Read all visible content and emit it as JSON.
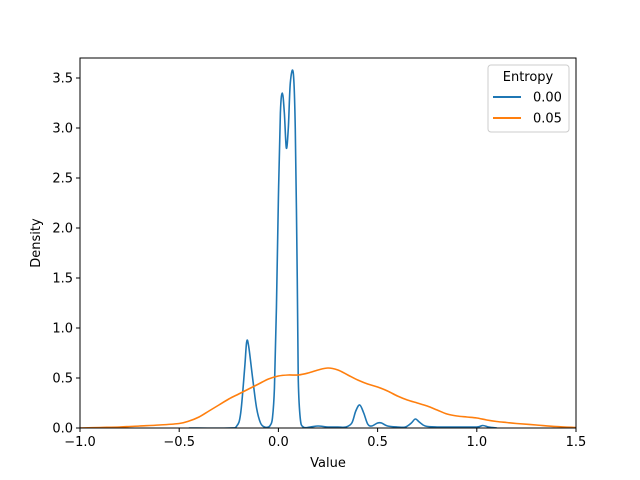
{
  "chart_data": {
    "type": "line",
    "xlabel": "Value",
    "ylabel": "Density",
    "xlim": [
      -1.0,
      1.5
    ],
    "ylim": [
      0.0,
      3.7
    ],
    "x_ticks": [
      -1.0,
      -0.5,
      0.0,
      0.5,
      1.0,
      1.5
    ],
    "x_tick_labels": [
      "−1.0",
      "−0.5",
      "0.0",
      "0.5",
      "1.0",
      "1.5"
    ],
    "y_ticks": [
      0.0,
      0.5,
      1.0,
      1.5,
      2.0,
      2.5,
      3.0,
      3.5
    ],
    "y_tick_labels": [
      "0.0",
      "0.5",
      "1.0",
      "1.5",
      "2.0",
      "2.5",
      "3.0",
      "3.5"
    ],
    "grid": false,
    "legend": {
      "title": "Entropy",
      "placement": "top-right"
    },
    "series": [
      {
        "name": "0.00",
        "color": "#1f77b4",
        "points": [
          [
            -0.45,
            0.0
          ],
          [
            -0.25,
            0.0
          ],
          [
            -0.21,
            0.02
          ],
          [
            -0.19,
            0.15
          ],
          [
            -0.17,
            0.6
          ],
          [
            -0.16,
            0.86
          ],
          [
            -0.15,
            0.82
          ],
          [
            -0.13,
            0.5
          ],
          [
            -0.11,
            0.2
          ],
          [
            -0.09,
            0.05
          ],
          [
            -0.07,
            0.01
          ],
          [
            -0.05,
            0.01
          ],
          [
            -0.04,
            0.03
          ],
          [
            -0.03,
            0.1
          ],
          [
            -0.02,
            0.4
          ],
          [
            -0.01,
            1.2
          ],
          [
            0.0,
            2.3
          ],
          [
            0.01,
            3.15
          ],
          [
            0.02,
            3.35
          ],
          [
            0.03,
            3.15
          ],
          [
            0.04,
            2.8
          ],
          [
            0.05,
            3.0
          ],
          [
            0.06,
            3.45
          ],
          [
            0.075,
            3.55
          ],
          [
            0.085,
            3.0
          ],
          [
            0.095,
            1.5
          ],
          [
            0.1,
            0.5
          ],
          [
            0.11,
            0.1
          ],
          [
            0.125,
            0.01
          ],
          [
            0.16,
            0.01
          ],
          [
            0.2,
            0.02
          ],
          [
            0.25,
            0.01
          ],
          [
            0.3,
            0.01
          ],
          [
            0.34,
            0.01
          ],
          [
            0.37,
            0.05
          ],
          [
            0.39,
            0.17
          ],
          [
            0.41,
            0.23
          ],
          [
            0.43,
            0.15
          ],
          [
            0.45,
            0.04
          ],
          [
            0.47,
            0.02
          ],
          [
            0.5,
            0.05
          ],
          [
            0.52,
            0.05
          ],
          [
            0.55,
            0.02
          ],
          [
            0.6,
            0.01
          ],
          [
            0.64,
            0.01
          ],
          [
            0.67,
            0.05
          ],
          [
            0.69,
            0.09
          ],
          [
            0.71,
            0.06
          ],
          [
            0.74,
            0.02
          ],
          [
            0.8,
            0.01
          ],
          [
            0.9,
            0.01
          ],
          [
            1.0,
            0.01
          ],
          [
            1.03,
            0.025
          ],
          [
            1.06,
            0.01
          ],
          [
            1.1,
            0.0
          ]
        ]
      },
      {
        "name": "0.05",
        "color": "#ff7f0e",
        "points": [
          [
            -1.0,
            0.0
          ],
          [
            -0.9,
            0.005
          ],
          [
            -0.8,
            0.01
          ],
          [
            -0.7,
            0.02
          ],
          [
            -0.6,
            0.03
          ],
          [
            -0.5,
            0.045
          ],
          [
            -0.45,
            0.07
          ],
          [
            -0.4,
            0.11
          ],
          [
            -0.35,
            0.17
          ],
          [
            -0.3,
            0.23
          ],
          [
            -0.25,
            0.29
          ],
          [
            -0.2,
            0.34
          ],
          [
            -0.15,
            0.39
          ],
          [
            -0.1,
            0.44
          ],
          [
            -0.05,
            0.49
          ],
          [
            0.0,
            0.52
          ],
          [
            0.05,
            0.53
          ],
          [
            0.1,
            0.53
          ],
          [
            0.15,
            0.55
          ],
          [
            0.2,
            0.58
          ],
          [
            0.25,
            0.6
          ],
          [
            0.3,
            0.58
          ],
          [
            0.35,
            0.53
          ],
          [
            0.4,
            0.48
          ],
          [
            0.45,
            0.44
          ],
          [
            0.5,
            0.41
          ],
          [
            0.55,
            0.37
          ],
          [
            0.6,
            0.32
          ],
          [
            0.65,
            0.28
          ],
          [
            0.7,
            0.25
          ],
          [
            0.75,
            0.22
          ],
          [
            0.8,
            0.18
          ],
          [
            0.85,
            0.14
          ],
          [
            0.9,
            0.12
          ],
          [
            0.95,
            0.11
          ],
          [
            1.0,
            0.1
          ],
          [
            1.05,
            0.08
          ],
          [
            1.1,
            0.065
          ],
          [
            1.15,
            0.055
          ],
          [
            1.2,
            0.045
          ],
          [
            1.3,
            0.03
          ],
          [
            1.4,
            0.015
          ],
          [
            1.5,
            0.005
          ]
        ]
      }
    ]
  }
}
